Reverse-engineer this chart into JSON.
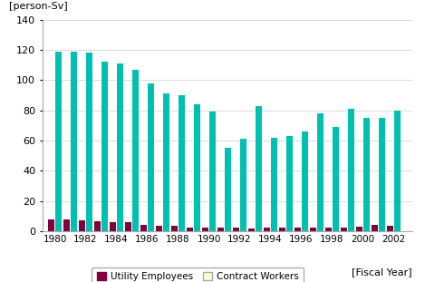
{
  "years": [
    1980,
    1981,
    1982,
    1983,
    1984,
    1985,
    1986,
    1987,
    1988,
    1989,
    1990,
    1991,
    1992,
    1993,
    1994,
    1995,
    1996,
    1997,
    1998,
    1999,
    2000,
    2001,
    2002
  ],
  "contract_workers": [
    119,
    119,
    118,
    112,
    111,
    107,
    98,
    91,
    90,
    84,
    79,
    55,
    61,
    83,
    62,
    63,
    66,
    78,
    69,
    81,
    75,
    75,
    80
  ],
  "utility_employees": [
    8,
    8,
    7,
    6.5,
    6,
    6,
    4,
    3.5,
    3.5,
    2.5,
    2.5,
    2.5,
    2.5,
    2,
    2.5,
    2.5,
    2.5,
    2.5,
    2.5,
    2.5,
    3,
    4,
    3.5
  ],
  "contract_color": "#00C0B0",
  "utility_color": "#800040",
  "ylabel": "[person-Sv]",
  "xlabel": "[Fiscal Year]",
  "ylim": [
    0,
    140
  ],
  "yticks": [
    0,
    20,
    40,
    60,
    80,
    100,
    120,
    140
  ],
  "xtick_labels": [
    "1980",
    "1982",
    "1984",
    "1986",
    "1988",
    "1990",
    "1992",
    "1994",
    "1996",
    "1998",
    "2000",
    "2002"
  ],
  "legend_utility": "Utility Employees",
  "legend_contract": "Contract Workers",
  "background_color": "#ffffff",
  "grid_color": "#cccccc"
}
